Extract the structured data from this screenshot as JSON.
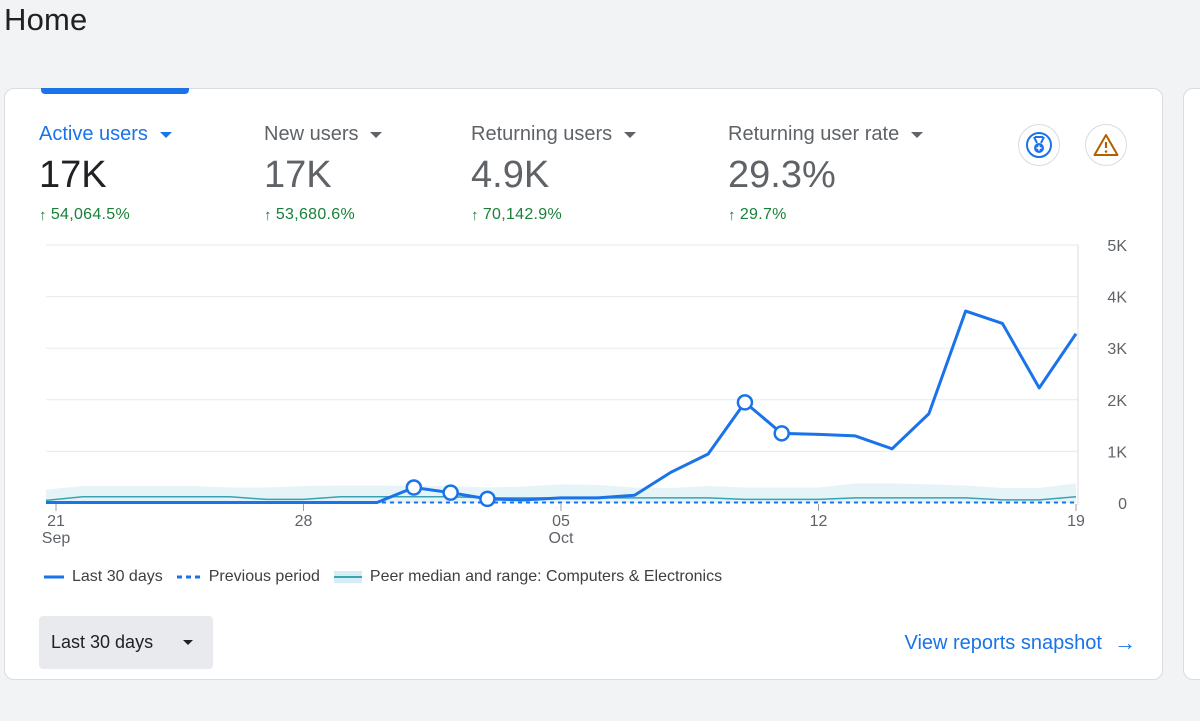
{
  "page": {
    "title": "Home"
  },
  "metrics": [
    {
      "label": "Active users",
      "value": "17K",
      "change": "54,064.5%",
      "selected": true
    },
    {
      "label": "New users",
      "value": "17K",
      "change": "53,680.6%",
      "selected": false
    },
    {
      "label": "Returning users",
      "value": "4.9K",
      "change": "70,142.9%",
      "selected": false
    },
    {
      "label": "Returning user rate",
      "value": "29.3%",
      "change": "29.7%",
      "selected": false
    }
  ],
  "icons": {
    "insights": "medal-icon",
    "alert": "warning-icon"
  },
  "colors": {
    "accent": "#1a73e8",
    "positive": "#188038",
    "peer_band": "#d5eef5",
    "peer_line": "#37a3b3",
    "alert": "#b06000"
  },
  "chart_data": {
    "type": "line",
    "title": "",
    "y_ticks": [
      "0",
      "1K",
      "2K",
      "3K",
      "4K",
      "5K"
    ],
    "ylim": [
      0,
      5000
    ],
    "x_ticks": [
      {
        "day": "21",
        "month": "Sep"
      },
      {
        "day": "28",
        "month": ""
      },
      {
        "day": "05",
        "month": "Oct"
      },
      {
        "day": "12",
        "month": ""
      },
      {
        "day": "19",
        "month": ""
      }
    ],
    "series": [
      {
        "name": "Last 30 days",
        "style": "solid",
        "values": [
          10,
          10,
          10,
          10,
          10,
          10,
          10,
          10,
          10,
          10,
          300,
          200,
          80,
          60,
          100,
          100,
          150,
          600,
          950,
          1950,
          1350,
          1330,
          1300,
          1050,
          1730,
          3720,
          3480,
          2230,
          3280
        ],
        "markers": [
          10,
          11,
          12,
          19,
          20
        ]
      },
      {
        "name": "Previous period",
        "style": "dashed",
        "values": [
          10,
          10,
          10,
          10,
          10,
          10,
          10,
          10,
          10,
          10,
          10,
          10,
          10,
          10,
          10,
          10,
          10,
          10,
          10,
          10,
          10,
          10,
          10,
          10,
          10,
          10,
          10,
          10,
          10
        ]
      },
      {
        "name": "Peer median",
        "style": "solid",
        "values": [
          50,
          120,
          120,
          120,
          120,
          120,
          70,
          70,
          120,
          120,
          120,
          120,
          100,
          100,
          100,
          100,
          100,
          100,
          100,
          70,
          70,
          70,
          100,
          100,
          100,
          100,
          60,
          60,
          120
        ],
        "band_low": [
          0,
          0,
          0,
          0,
          0,
          0,
          0,
          0,
          0,
          0,
          0,
          0,
          0,
          0,
          0,
          0,
          0,
          0,
          0,
          0,
          0,
          0,
          0,
          0,
          0,
          0,
          0,
          0,
          0
        ],
        "band_high": [
          260,
          330,
          330,
          330,
          330,
          300,
          300,
          330,
          340,
          340,
          330,
          330,
          300,
          320,
          360,
          350,
          300,
          290,
          330,
          300,
          300,
          300,
          380,
          380,
          360,
          340,
          290,
          290,
          380
        ]
      }
    ],
    "legend": [
      {
        "label": "Last 30 days",
        "style": "solid"
      },
      {
        "label": "Previous period",
        "style": "dashed"
      },
      {
        "label": "Peer median and range: Computers & Electronics",
        "style": "band"
      }
    ]
  },
  "footer": {
    "date_range": "Last 30 days",
    "view_link": "View reports snapshot"
  }
}
